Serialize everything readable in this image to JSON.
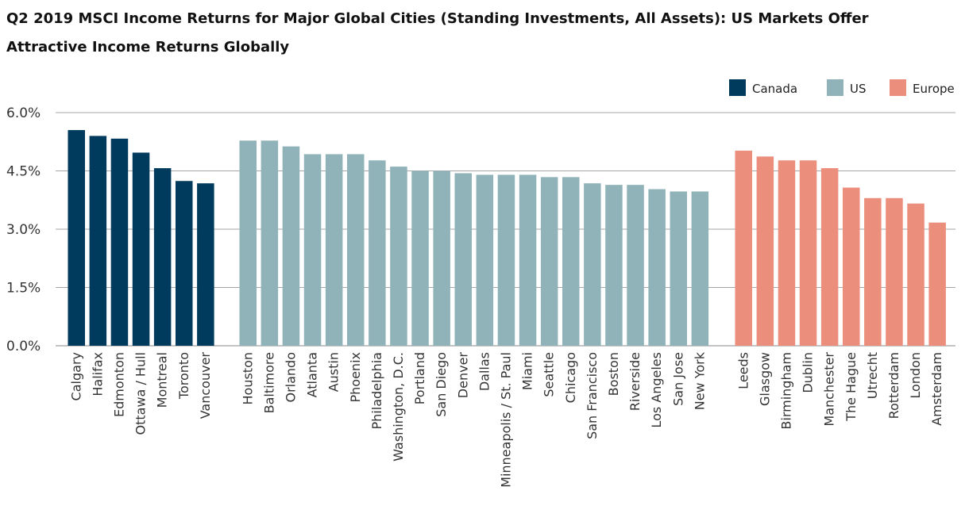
{
  "chart_data": {
    "type": "bar",
    "title": "Q2 2019 MSCI Income Returns for Major Global Cities (Standing Investments, All Assets): US Markets Offer Attractive Income Returns Globally",
    "xlabel": "",
    "ylabel": "",
    "ylim": [
      0,
      6.0
    ],
    "yticks": [
      "0.0%",
      "1.5%",
      "3.0%",
      "4.5%",
      "6.0%"
    ],
    "ytick_values": [
      0,
      1.5,
      3.0,
      4.5,
      6.0
    ],
    "grid": true,
    "legend_position": "top-right",
    "groups": [
      {
        "name": "Canada",
        "color": "#003a5c",
        "categories": [
          "Calgary",
          "Halifax",
          "Edmonton",
          "Ottawa / Hull",
          "Montreal",
          "Toronto",
          "Vancouver"
        ],
        "values": [
          5.55,
          5.4,
          5.33,
          4.97,
          4.57,
          4.24,
          4.18
        ]
      },
      {
        "name": "US",
        "color": "#8fb3b9",
        "categories": [
          "Houston",
          "Baltimore",
          "Orlando",
          "Atlanta",
          "Austin",
          "Phoenix",
          "Philadelphia",
          "Washington, D.C.",
          "Portland",
          "San Diego",
          "Denver",
          "Dallas",
          "Minneapolis / St. Paul",
          "Miami",
          "Seattle",
          "Chicago",
          "San Francisco",
          "Boston",
          "Riverside",
          "Los Angeles",
          "San Jose",
          "New York"
        ],
        "values": [
          5.28,
          5.28,
          5.13,
          4.93,
          4.93,
          4.93,
          4.77,
          4.61,
          4.5,
          4.5,
          4.44,
          4.4,
          4.4,
          4.4,
          4.34,
          4.34,
          4.18,
          4.14,
          4.14,
          4.03,
          3.97,
          3.97
        ]
      },
      {
        "name": "Europe",
        "color": "#ec8e7c",
        "categories": [
          "Leeds",
          "Glasgow",
          "Birmingham",
          "Dublin",
          "Manchester",
          "The Hague",
          "Utrecht",
          "Rotterdam",
          "London",
          "Amsterdam"
        ],
        "values": [
          5.02,
          4.87,
          4.77,
          4.77,
          4.57,
          4.07,
          3.8,
          3.8,
          3.66,
          3.17
        ]
      }
    ]
  }
}
